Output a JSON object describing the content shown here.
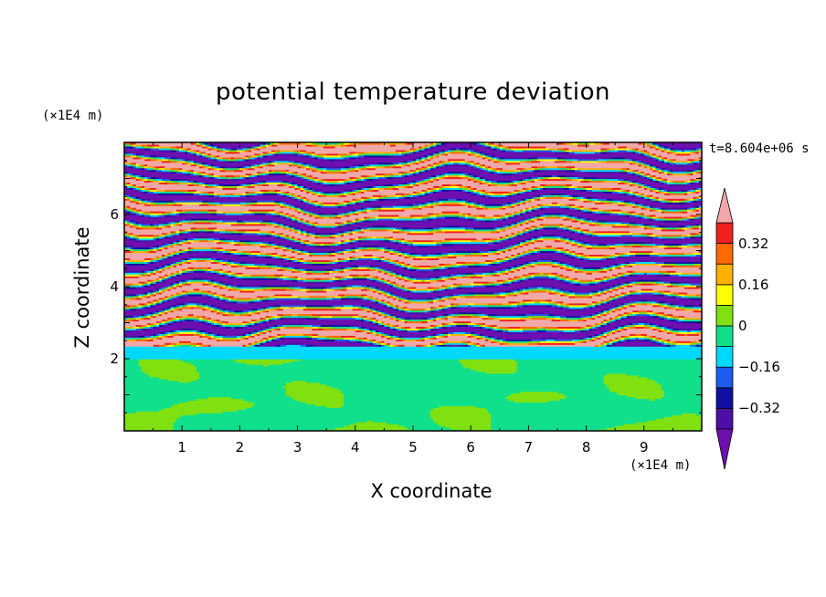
{
  "chart_data": {
    "type": "heatmap",
    "title": "potential temperature deviation",
    "xlabel": "X coordinate",
    "ylabel": "Z coordinate",
    "x_unit": "(×1E4 m)",
    "y_unit": "(×1E4 m)",
    "xlim": [
      0,
      10
    ],
    "ylim": [
      0,
      8
    ],
    "x_ticks": [
      1,
      2,
      3,
      4,
      5,
      6,
      7,
      8,
      9
    ],
    "y_ticks": [
      2,
      4,
      6
    ],
    "annotation": "t=8.604e+06 s",
    "colorbar": {
      "ticks": [
        "0.32",
        "0.16",
        "0",
        "−0.16",
        "−0.32"
      ],
      "levels": [
        {
          "min": -0.4,
          "max": -0.32,
          "color": "#4b0fa8"
        },
        {
          "min": -0.32,
          "max": -0.24,
          "color": "#1010a0"
        },
        {
          "min": -0.24,
          "max": -0.16,
          "color": "#1e5cf0"
        },
        {
          "min": -0.16,
          "max": -0.08,
          "color": "#00d8ff"
        },
        {
          "min": -0.08,
          "max": 0.0,
          "color": "#10e08c"
        },
        {
          "min": 0.0,
          "max": 0.08,
          "color": "#80e010"
        },
        {
          "min": 0.08,
          "max": 0.16,
          "color": "#ffff00"
        },
        {
          "min": 0.16,
          "max": 0.24,
          "color": "#ffb000"
        },
        {
          "min": 0.24,
          "max": 0.32,
          "color": "#ff6a00"
        },
        {
          "min": 0.32,
          "max": 0.4,
          "color": "#f02020"
        }
      ],
      "under_color": "#6e0fb0",
      "over_color": "#f2a8a8",
      "extend": "both"
    },
    "regions": [
      {
        "description": "lower boundary layer",
        "z_range": [
          0,
          2.0
        ],
        "dominant_values": [
          -0.04,
          0.04
        ]
      },
      {
        "description": "transition band",
        "z_range": [
          2.0,
          2.4
        ],
        "dominant_values": [
          -0.12,
          -0.04
        ]
      },
      {
        "description": "stratified layers",
        "z_range": [
          2.4,
          8.0
        ],
        "dominant_values": [
          -0.44,
          0.44
        ]
      }
    ]
  }
}
